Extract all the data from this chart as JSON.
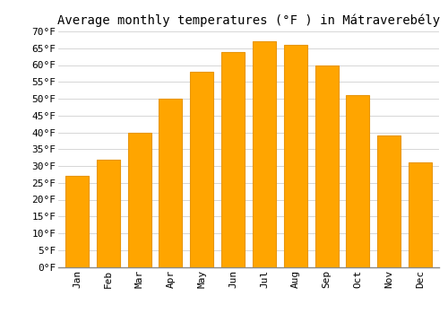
{
  "title": "Average monthly temperatures (°F ) in Mátraverebély",
  "months": [
    "Jan",
    "Feb",
    "Mar",
    "Apr",
    "May",
    "Jun",
    "Jul",
    "Aug",
    "Sep",
    "Oct",
    "Nov",
    "Dec"
  ],
  "values": [
    27,
    32,
    40,
    50,
    58,
    64,
    67,
    66,
    60,
    51,
    39,
    31
  ],
  "bar_color": "#FFA500",
  "bar_edge_color": "#E8960A",
  "ylim": [
    0,
    70
  ],
  "ytick_step": 5,
  "background_color": "#ffffff",
  "grid_color": "#d0d0d0",
  "title_fontsize": 10,
  "tick_fontsize": 8,
  "font_family": "monospace",
  "bar_width": 0.75
}
